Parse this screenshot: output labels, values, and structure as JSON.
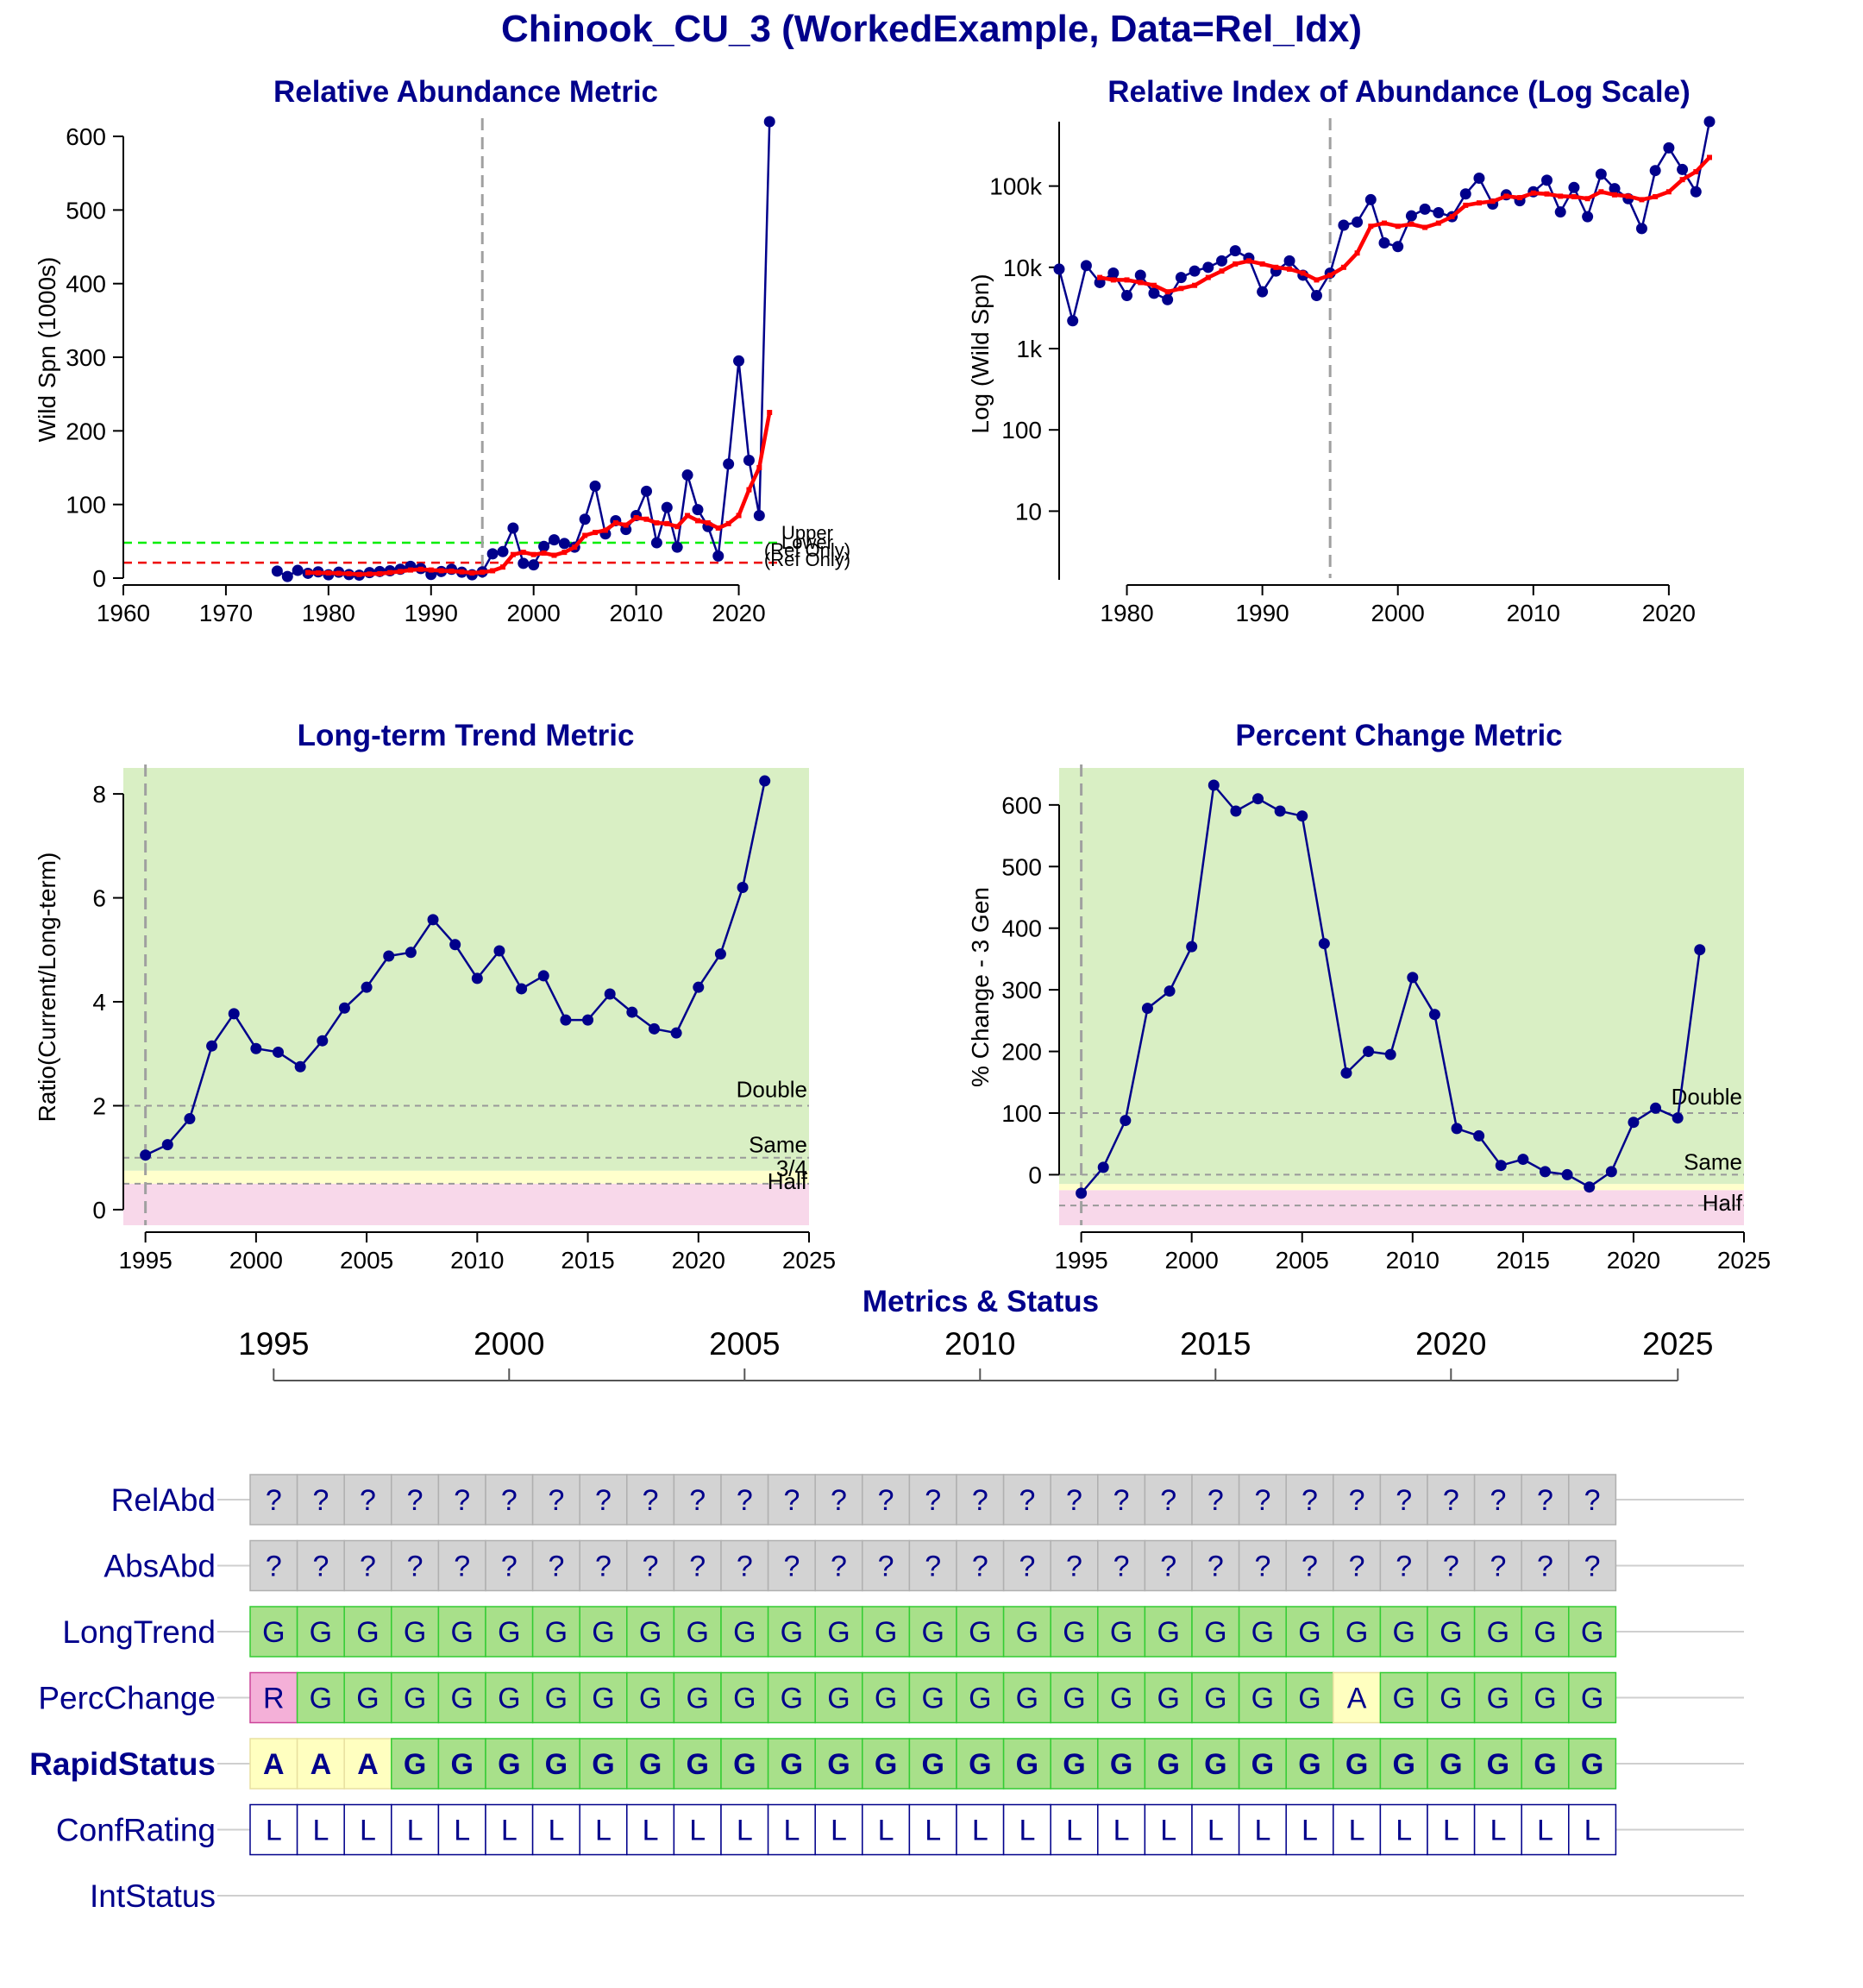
{
  "page": {
    "title": "Chinook_CU_3 (WorkedExample, Data=Rel_Idx)",
    "status_section_title": "Metrics & Status"
  },
  "colors": {
    "series": "#00008b",
    "avg": "#ff0000",
    "upper_bm": "#00ee00",
    "lower_bm": "#ee0000",
    "green_zone": "#d9efc4",
    "amber_zone": "#ffffcc",
    "red_zone": "#f8d8ea",
    "cell_green": "#a8e08a",
    "cell_amber": "#ffffc0",
    "cell_red": "#f4b0d8",
    "cell_grey": "#d3d3d3",
    "cell_white": "#ffffff"
  },
  "chart_data": [
    {
      "id": "abd",
      "type": "line",
      "title": "Relative Abundance Metric",
      "xlabel": "",
      "ylabel": "Wild Spn (1000s)",
      "xlim": [
        1960,
        2025
      ],
      "ylim": [
        0,
        620
      ],
      "xticks": [
        1960,
        1970,
        1980,
        1990,
        2000,
        2010,
        2020
      ],
      "yticks": [
        0,
        100,
        200,
        300,
        400,
        500,
        600
      ],
      "vline": 1995,
      "benchmarks": [
        {
          "value": 48,
          "label_a": "Upper",
          "label_b": "(Ref Only)",
          "color": "#00ee00"
        },
        {
          "value": 21,
          "label_a": "Lower",
          "label_b": "(Ref Only)",
          "color": "#ee0000"
        }
      ],
      "series": [
        {
          "x": [
            1975,
            1976,
            1977,
            1978,
            1979,
            1980,
            1981,
            1982,
            1983,
            1984,
            1985,
            1986,
            1987,
            1988,
            1989,
            1990,
            1991,
            1992,
            1993,
            1994,
            1995,
            1996,
            1997,
            1998,
            1999,
            2000,
            2001,
            2002,
            2003,
            2004,
            2005,
            2006,
            2007,
            2008,
            2009,
            2010,
            2011,
            2012,
            2013,
            2014,
            2015,
            2016,
            2017,
            2018,
            2019,
            2020,
            2021,
            2022,
            2023
          ],
          "values": [
            9.5,
            2.2,
            10.5,
            6.5,
            8.5,
            4.5,
            8,
            4.8,
            4,
            7.5,
            9,
            10,
            12,
            16,
            13,
            5,
            9,
            12,
            8,
            4.5,
            8.5,
            33,
            36,
            68,
            20,
            18,
            43,
            52,
            47,
            42,
            80,
            125,
            60,
            78,
            66,
            85,
            118,
            48,
            96,
            42,
            140,
            93,
            70,
            30,
            155,
            295,
            160,
            85,
            620
          ]
        },
        {
          "x": [
            1978,
            1979,
            1980,
            1981,
            1982,
            1983,
            1984,
            1985,
            1986,
            1987,
            1988,
            1989,
            1990,
            1991,
            1992,
            1993,
            1994,
            1995,
            1996,
            1997,
            1998,
            1999,
            2000,
            2001,
            2002,
            2003,
            2004,
            2005,
            2006,
            2007,
            2008,
            2009,
            2010,
            2011,
            2012,
            2013,
            2014,
            2015,
            2016,
            2017,
            2018,
            2019,
            2020,
            2021,
            2022,
            2023
          ],
          "values": [
            7.5,
            7,
            7,
            6.5,
            6,
            5,
            5.5,
            6,
            7.5,
            9,
            11,
            12,
            11,
            10,
            9.5,
            8.5,
            7,
            8,
            10,
            15,
            32,
            35,
            32,
            34,
            31,
            35,
            42,
            58,
            62,
            65,
            75,
            72,
            82,
            80,
            75,
            74,
            70,
            85,
            78,
            75,
            68,
            74,
            85,
            120,
            150,
            225
          ]
        }
      ]
    },
    {
      "id": "log",
      "type": "line",
      "title": "Relative Index of Abundance (Log Scale)",
      "xlabel": "",
      "ylabel": "Log (Wild Spn)",
      "yscale": "log",
      "xlim": [
        1975,
        2023
      ],
      "ylim": [
        1.5,
        620000
      ],
      "xticks": [
        1980,
        1990,
        2000,
        2010,
        2020
      ],
      "yticks": [
        10,
        100,
        1000,
        10000,
        100000
      ],
      "ytick_labels": [
        "10",
        "100",
        "1k",
        "10k",
        "100k"
      ],
      "vline": 1995,
      "series": [
        {
          "x": [
            1975,
            1976,
            1977,
            1978,
            1979,
            1980,
            1981,
            1982,
            1983,
            1984,
            1985,
            1986,
            1987,
            1988,
            1989,
            1990,
            1991,
            1992,
            1993,
            1994,
            1995,
            1996,
            1997,
            1998,
            1999,
            2000,
            2001,
            2002,
            2003,
            2004,
            2005,
            2006,
            2007,
            2008,
            2009,
            2010,
            2011,
            2012,
            2013,
            2014,
            2015,
            2016,
            2017,
            2018,
            2019,
            2020,
            2021,
            2022,
            2023
          ],
          "values": [
            9500,
            2200,
            10500,
            6500,
            8500,
            4500,
            8000,
            4800,
            4000,
            7500,
            9000,
            10000,
            12000,
            16000,
            13000,
            5000,
            9000,
            12000,
            8000,
            4500,
            8500,
            33000,
            36000,
            68000,
            20000,
            18000,
            43000,
            52000,
            47000,
            42000,
            80000,
            125000,
            60000,
            78000,
            66000,
            85000,
            118000,
            48000,
            96000,
            42000,
            140000,
            93000,
            70000,
            30000,
            155000,
            295000,
            160000,
            85000,
            620000
          ]
        },
        {
          "x": [
            1978,
            1979,
            1980,
            1981,
            1982,
            1983,
            1984,
            1985,
            1986,
            1987,
            1988,
            1989,
            1990,
            1991,
            1992,
            1993,
            1994,
            1995,
            1996,
            1997,
            1998,
            1999,
            2000,
            2001,
            2002,
            2003,
            2004,
            2005,
            2006,
            2007,
            2008,
            2009,
            2010,
            2011,
            2012,
            2013,
            2014,
            2015,
            2016,
            2017,
            2018,
            2019,
            2020,
            2021,
            2022,
            2023
          ],
          "values": [
            7500,
            7000,
            7000,
            6500,
            6000,
            5000,
            5500,
            6000,
            7500,
            9000,
            11000,
            12000,
            11000,
            10000,
            9500,
            8500,
            7000,
            8000,
            10000,
            15000,
            32000,
            35000,
            32000,
            34000,
            31000,
            35000,
            42000,
            58000,
            62000,
            65000,
            75000,
            72000,
            82000,
            80000,
            75000,
            74000,
            70000,
            85000,
            78000,
            75000,
            68000,
            74000,
            85000,
            120000,
            150000,
            225000
          ]
        }
      ]
    },
    {
      "id": "lt",
      "type": "line",
      "title": "Long-term Trend Metric",
      "xlabel": "",
      "ylabel": "Ratio(Current/Long-term)",
      "xlim": [
        1994,
        2025
      ],
      "ylim": [
        -0.3,
        8.5
      ],
      "xticks": [
        1995,
        2000,
        2005,
        2010,
        2015,
        2020,
        2025
      ],
      "yticks": [
        0,
        2,
        4,
        6,
        8
      ],
      "vline": 1995,
      "zones": [
        {
          "from": -0.3,
          "to": 0.5,
          "color": "#f8d8ea"
        },
        {
          "from": 0.5,
          "to": 0.75,
          "color": "#ffffcc"
        },
        {
          "from": 0.75,
          "to": 8.5,
          "color": "#d9efc4"
        }
      ],
      "reflines": [
        {
          "value": 2,
          "label": "Double"
        },
        {
          "value": 1,
          "label": "Same"
        },
        {
          "value": 0.75,
          "label": "3/4"
        },
        {
          "value": 0.5,
          "label": "Half"
        }
      ],
      "series": [
        {
          "x": [
            1995,
            1996,
            1997,
            1998,
            1999,
            2000,
            2001,
            2002,
            2003,
            2004,
            2005,
            2006,
            2007,
            2008,
            2009,
            2010,
            2011,
            2012,
            2013,
            2014,
            2015,
            2016,
            2017,
            2018,
            2019,
            2020,
            2021,
            2022,
            2023
          ],
          "values": [
            1.05,
            1.25,
            1.75,
            3.15,
            3.77,
            3.1,
            3.03,
            2.75,
            3.25,
            3.88,
            4.28,
            4.88,
            4.95,
            5.58,
            5.1,
            4.45,
            4.98,
            4.25,
            4.5,
            3.65,
            3.65,
            4.15,
            3.8,
            3.48,
            3.4,
            4.28,
            4.92,
            6.2,
            8.25
          ]
        }
      ]
    },
    {
      "id": "pc",
      "type": "line",
      "title": "Percent Change Metric",
      "xlabel": "",
      "ylabel": "% Change - 3 Gen",
      "xlim": [
        1994,
        2025
      ],
      "ylim": [
        -82,
        660
      ],
      "xticks": [
        1995,
        2000,
        2005,
        2010,
        2015,
        2020,
        2025
      ],
      "yticks": [
        0,
        100,
        200,
        300,
        400,
        500,
        600
      ],
      "vline": 1995,
      "zones": [
        {
          "from": -82,
          "to": -25,
          "color": "#f8d8ea"
        },
        {
          "from": -25,
          "to": -15,
          "color": "#ffffcc"
        },
        {
          "from": -15,
          "to": 660,
          "color": "#d9efc4"
        }
      ],
      "reflines": [
        {
          "value": 100,
          "label": "Double"
        },
        {
          "value": 0,
          "label": "Same"
        },
        {
          "value": -50,
          "label": "Half"
        }
      ],
      "series": [
        {
          "x": [
            1995,
            1996,
            1997,
            1998,
            1999,
            2000,
            2001,
            2002,
            2003,
            2004,
            2005,
            2006,
            2007,
            2008,
            2009,
            2010,
            2011,
            2012,
            2013,
            2014,
            2015,
            2016,
            2017,
            2018,
            2019,
            2020,
            2021,
            2022,
            2023
          ],
          "values": [
            -30,
            12,
            88,
            270,
            298,
            370,
            632,
            590,
            610,
            590,
            582,
            375,
            165,
            200,
            195,
            320,
            260,
            75,
            63,
            15,
            25,
            5,
            0,
            -20,
            5,
            85,
            108,
            92,
            365
          ]
        }
      ]
    }
  ],
  "status_grid": {
    "years": [
      1995,
      1996,
      1997,
      1998,
      1999,
      2000,
      2001,
      2002,
      2003,
      2004,
      2005,
      2006,
      2007,
      2008,
      2009,
      2010,
      2011,
      2012,
      2013,
      2014,
      2015,
      2016,
      2017,
      2018,
      2019,
      2020,
      2021,
      2022,
      2023
    ],
    "axis_ticks": [
      1995,
      2000,
      2005,
      2010,
      2015,
      2020,
      2025
    ],
    "rows": [
      {
        "label": "RelAbd",
        "bold": false,
        "cells": "?????????????????????????????"
      },
      {
        "label": "AbsAbd",
        "bold": false,
        "cells": "?????????????????????????????"
      },
      {
        "label": "LongTrend",
        "bold": false,
        "cells": "GGGGGGGGGGGGGGGGGGGGGGGGGGGGG"
      },
      {
        "label": "PercChange",
        "bold": false,
        "cells": "RGGGGGGGGGGGGGGGGGGGGGGAGGGGG"
      },
      {
        "label": "RapidStatus",
        "bold": true,
        "cells": "AAAGGGGGGGGGGGGGGGGGGGGGGGGGG"
      },
      {
        "label": "ConfRating",
        "bold": false,
        "cells": "LLLLLLLLLLLLLLLLLLLLLLLLLLLLL"
      },
      {
        "label": "IntStatus",
        "bold": false,
        "cells": ""
      }
    ]
  }
}
